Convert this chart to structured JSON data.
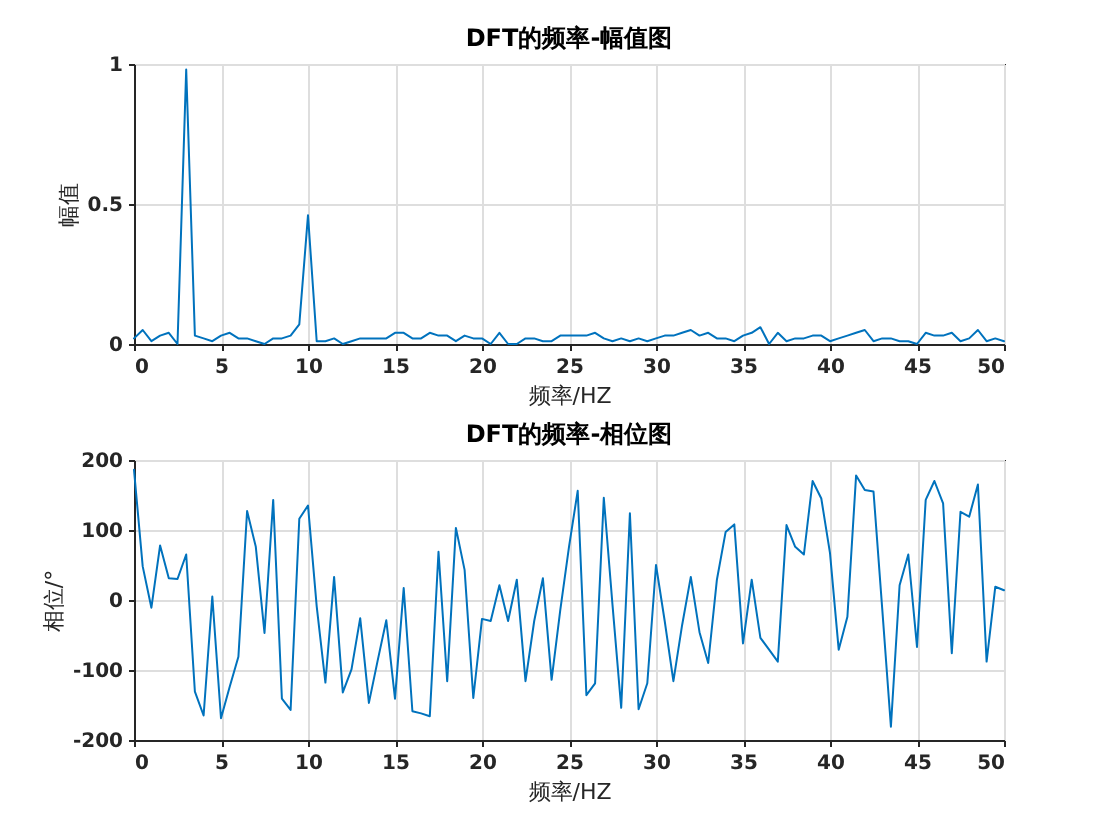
{
  "chart_data": [
    {
      "type": "line",
      "title": "DFT的频率-幅值图",
      "xlabel": "频率/HZ",
      "ylabel": "幅值",
      "x": [
        0,
        0.5,
        1,
        1.5,
        2,
        2.5,
        3,
        3.5,
        4,
        4.5,
        5,
        5.5,
        6,
        6.5,
        7,
        7.5,
        8,
        8.5,
        9,
        9.5,
        10,
        10.5,
        11,
        11.5,
        12,
        12.5,
        13,
        13.5,
        14,
        14.5,
        15,
        15.5,
        16,
        16.5,
        17,
        17.5,
        18,
        18.5,
        19,
        19.5,
        20,
        20.5,
        21,
        21.5,
        22,
        22.5,
        23,
        23.5,
        24,
        24.5,
        25,
        25.5,
        26,
        26.5,
        27,
        27.5,
        28,
        28.5,
        29,
        29.5,
        30,
        30.5,
        31,
        31.5,
        32,
        32.5,
        33,
        33.5,
        34,
        34.5,
        35,
        35.5,
        36,
        36.5,
        37,
        37.5,
        38,
        38.5,
        39,
        39.5,
        40,
        40.5,
        41,
        41.5,
        42,
        42.5,
        43,
        43.5,
        44,
        44.5,
        45,
        45.5,
        46,
        46.5,
        47,
        47.5,
        48,
        48.5,
        49,
        49.5,
        50
      ],
      "series": [
        {
          "color": "#0072bd",
          "values": [
            0.02,
            0.05,
            0.01,
            0.03,
            0.04,
            0.0,
            0.98,
            0.03,
            0.02,
            0.01,
            0.03,
            0.04,
            0.02,
            0.02,
            0.01,
            0.0,
            0.02,
            0.02,
            0.03,
            0.07,
            0.46,
            0.01,
            0.01,
            0.02,
            0.0,
            0.01,
            0.02,
            0.02,
            0.02,
            0.02,
            0.04,
            0.04,
            0.02,
            0.02,
            0.04,
            0.03,
            0.03,
            0.01,
            0.03,
            0.02,
            0.02,
            0.0,
            0.04,
            0.0,
            0.0,
            0.02,
            0.02,
            0.01,
            0.01,
            0.03,
            0.03,
            0.03,
            0.03,
            0.04,
            0.02,
            0.01,
            0.02,
            0.01,
            0.02,
            0.01,
            0.02,
            0.03,
            0.03,
            0.04,
            0.05,
            0.03,
            0.04,
            0.02,
            0.02,
            0.01,
            0.03,
            0.04,
            0.06,
            0.0,
            0.04,
            0.01,
            0.02,
            0.02,
            0.03,
            0.03,
            0.01,
            0.02,
            0.03,
            0.04,
            0.05,
            0.01,
            0.02,
            0.02,
            0.01,
            0.01,
            0.0,
            0.04,
            0.03,
            0.03,
            0.04,
            0.01,
            0.02,
            0.05,
            0.01,
            0.02,
            0.01
          ]
        }
      ],
      "xlim": [
        0,
        50
      ],
      "xticks": [
        0,
        5,
        10,
        15,
        20,
        25,
        30,
        35,
        40,
        45,
        50
      ],
      "ylim": [
        0,
        1
      ],
      "yticks": [
        0,
        0.5,
        1
      ],
      "grid": true,
      "line_style": "solid"
    },
    {
      "type": "line",
      "title": "DFT的频率-相位图",
      "xlabel": "频率/HZ",
      "ylabel": "相位/°",
      "x": [
        0,
        0.5,
        1,
        1.5,
        2,
        2.5,
        3,
        3.5,
        4,
        4.5,
        5,
        5.5,
        6,
        6.5,
        7,
        7.5,
        8,
        8.5,
        9,
        9.5,
        10,
        10.5,
        11,
        11.5,
        12,
        12.5,
        13,
        13.5,
        14,
        14.5,
        15,
        15.5,
        16,
        16.5,
        17,
        17.5,
        18,
        18.5,
        19,
        19.5,
        20,
        20.5,
        21,
        21.5,
        22,
        22.5,
        23,
        23.5,
        24,
        24.5,
        25,
        25.5,
        26,
        26.5,
        27,
        27.5,
        28,
        28.5,
        29,
        29.5,
        30,
        30.5,
        31,
        31.5,
        32,
        32.5,
        33,
        33.5,
        34,
        34.5,
        35,
        35.5,
        36,
        36.5,
        37,
        37.5,
        38,
        38.5,
        39,
        39.5,
        40,
        40.5,
        41,
        41.5,
        42,
        42.5,
        43,
        43.5,
        44,
        44.5,
        45,
        45.5,
        46,
        46.5,
        47,
        47.5,
        48,
        48.5,
        49,
        49.5,
        50
      ],
      "series": [
        {
          "color": "#0072bd",
          "values": [
            186,
            48,
            -11,
            78,
            31,
            30,
            65,
            -131,
            -165,
            5,
            -169,
            -124,
            -81,
            127,
            76,
            -47,
            143,
            -141,
            -157,
            116,
            135,
            -9,
            -118,
            33,
            -132,
            -99,
            -26,
            -147,
            -87,
            -29,
            -141,
            17,
            -159,
            -162,
            -166,
            69,
            -116,
            103,
            43,
            -140,
            -27,
            -30,
            21,
            -30,
            29,
            -116,
            -30,
            31,
            -114,
            -14,
            76,
            156,
            -136,
            -119,
            146,
            -7,
            -154,
            124,
            -156,
            -119,
            50,
            -30,
            -116,
            -36,
            33,
            -46,
            -90,
            29,
            97,
            108,
            -62,
            29,
            -54,
            -71,
            -88,
            107,
            76,
            65,
            170,
            145,
            67,
            -71,
            -24,
            178,
            157,
            155,
            -12,
            -181,
            21,
            65,
            -67,
            143,
            170,
            138,
            -76,
            126,
            119,
            165,
            -88,
            19,
            14
          ]
        }
      ],
      "xlim": [
        0,
        50
      ],
      "xticks": [
        0,
        5,
        10,
        15,
        20,
        25,
        30,
        35,
        40,
        45,
        50
      ],
      "ylim": [
        -200,
        200
      ],
      "yticks": [
        -200,
        -100,
        0,
        100,
        200
      ],
      "grid": true,
      "line_style": "solid"
    }
  ]
}
